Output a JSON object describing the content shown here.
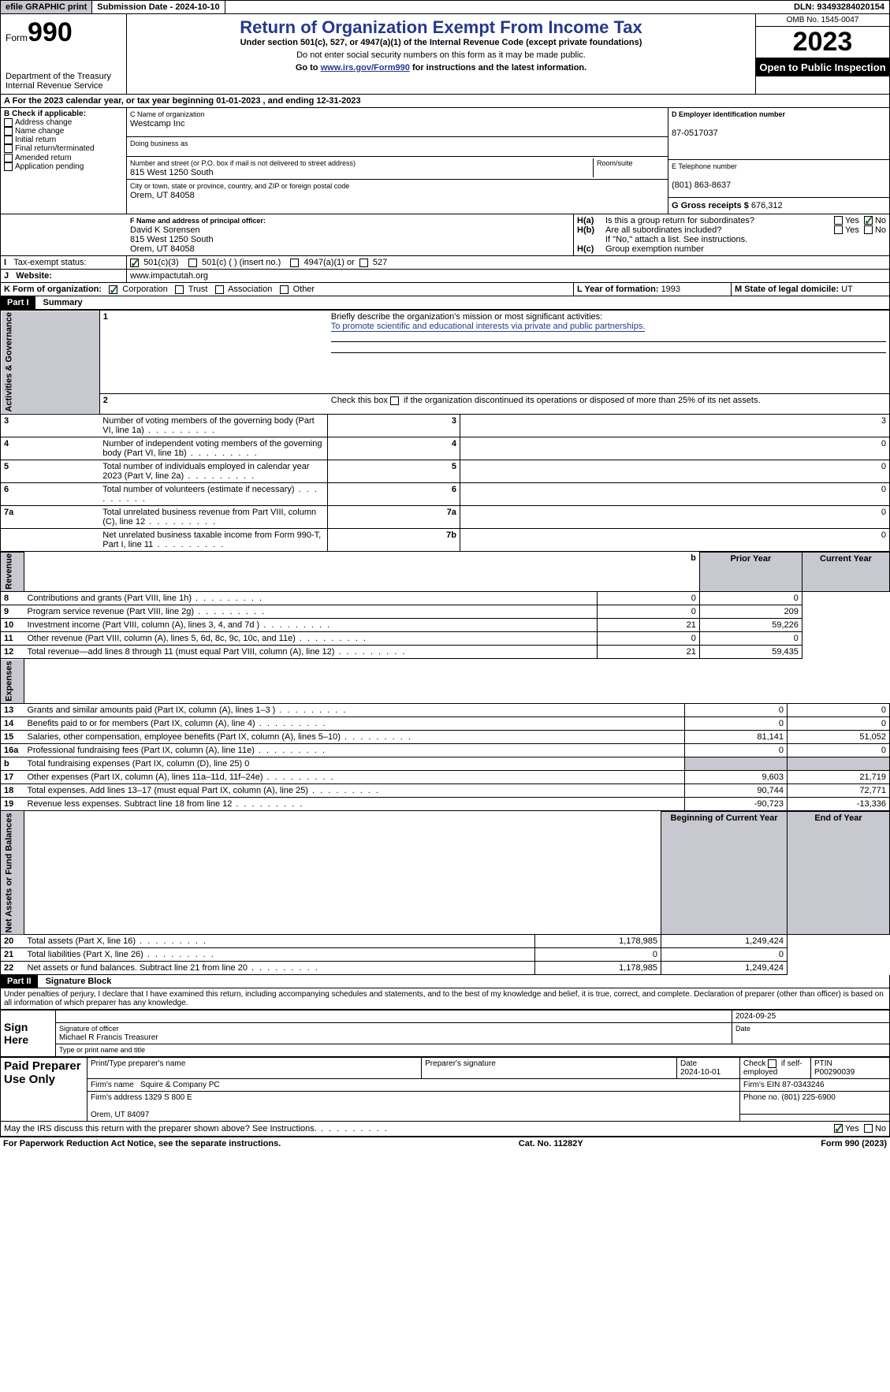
{
  "topbar": {
    "efile": "efile GRAPHIC print",
    "submission_label": "Submission Date - 2024-10-10",
    "dln_label": "DLN: 93493284020154"
  },
  "header": {
    "form_word": "Form",
    "form_num": "990",
    "dept": "Department of the Treasury",
    "irs": "Internal Revenue Service",
    "title": "Return of Organization Exempt From Income Tax",
    "sub1": "Under section 501(c), 527, or 4947(a)(1) of the Internal Revenue Code (except private foundations)",
    "sub2": "Do not enter social security numbers on this form as it may be made public.",
    "sub3_pre": "Go to ",
    "sub3_link": "www.irs.gov/Form990",
    "sub3_post": " for instructions and the latest information.",
    "omb": "OMB No. 1545-0047",
    "year": "2023",
    "open": "Open to Public Inspection"
  },
  "lineA": {
    "pre": "For the 2023 calendar year, or tax year beginning ",
    "begin": "01-01-2023",
    "mid": " , and ending ",
    "end": "12-31-2023"
  },
  "boxB": {
    "title": "B Check if applicable:",
    "items": [
      "Address change",
      "Name change",
      "Initial return",
      "Final return/terminated",
      "Amended return",
      "Application pending"
    ]
  },
  "boxC": {
    "name_lbl": "C Name of organization",
    "name": "Westcamp Inc",
    "dba_lbl": "Doing business as",
    "addr_lbl": "Number and street (or P.O. box if mail is not delivered to street address)",
    "room_lbl": "Room/suite",
    "addr": "815 West 1250 South",
    "city_lbl": "City or town, state or province, country, and ZIP or foreign postal code",
    "city": "Orem, UT  84058"
  },
  "boxD": {
    "lbl": "D Employer identification number",
    "val": "87-0517037"
  },
  "boxE": {
    "lbl": "E Telephone number",
    "val": "(801) 863-8637"
  },
  "boxG": {
    "lbl": "G Gross receipts $ ",
    "val": "676,312"
  },
  "boxF": {
    "lbl": "F  Name and address of principal officer:",
    "l1": "David K Sorensen",
    "l2": "815 West 1250 South",
    "l3": "Orem, UT  84058"
  },
  "boxH": {
    "a_lbl": "Is this a group return for subordinates?",
    "b_lbl": "Are all subordinates included?",
    "yes": "Yes",
    "no": "No",
    "note": "If \"No,\" attach a list. See instructions.",
    "c_lbl": "Group exemption number"
  },
  "taxexempt": {
    "i_lbl": "Tax-exempt status:",
    "o1": "501(c)(3)",
    "o2": "501(c) (  ) (insert no.)",
    "o3": "4947(a)(1) or",
    "o4": "527"
  },
  "website": {
    "j_lbl": "Website:",
    "val": "www.impactutah.org"
  },
  "orgform": {
    "k_lbl": "K Form of organization:",
    "o1": "Corporation",
    "o2": "Trust",
    "o3": "Association",
    "o4": "Other"
  },
  "boxL": {
    "lbl": "L Year of formation: ",
    "val": "1993"
  },
  "boxM": {
    "lbl": "M State of legal domicile: ",
    "val": "UT"
  },
  "part1": {
    "lbl": "Part I",
    "title": "Summary"
  },
  "summary": {
    "l1_lbl": "Briefly describe the organization's mission or most significant activities:",
    "l1_val": "To promote scientific and educational interests via private and public partnerships.",
    "l2_lbl": "Check this box      if the organization discontinued its operations or disposed of more than 25% of its net assets.",
    "side_gov": "Activities & Governance",
    "side_rev": "Revenue",
    "side_exp": "Expenses",
    "side_net": "Net Assets or Fund Balances",
    "rows_gov": [
      {
        "n": "3",
        "t": "Number of voting members of the governing body (Part VI, line 1a)",
        "k": "3",
        "v": "3"
      },
      {
        "n": "4",
        "t": "Number of independent voting members of the governing body (Part VI, line 1b)",
        "k": "4",
        "v": "0"
      },
      {
        "n": "5",
        "t": "Total number of individuals employed in calendar year 2023 (Part V, line 2a)",
        "k": "5",
        "v": "0"
      },
      {
        "n": "6",
        "t": "Total number of volunteers (estimate if necessary)",
        "k": "6",
        "v": "0"
      },
      {
        "n": "7a",
        "t": "Total unrelated business revenue from Part VIII, column (C), line 12",
        "k": "7a",
        "v": "0"
      },
      {
        "n": "",
        "t": "Net unrelated business taxable income from Form 990-T, Part I, line 11",
        "k": "7b",
        "v": "0"
      }
    ],
    "hdr_prior": "Prior Year",
    "hdr_curr": "Current Year",
    "rows_rev": [
      {
        "n": "8",
        "t": "Contributions and grants (Part VIII, line 1h)",
        "p": "0",
        "c": "0"
      },
      {
        "n": "9",
        "t": "Program service revenue (Part VIII, line 2g)",
        "p": "0",
        "c": "209"
      },
      {
        "n": "10",
        "t": "Investment income (Part VIII, column (A), lines 3, 4, and 7d )",
        "p": "21",
        "c": "59,226"
      },
      {
        "n": "11",
        "t": "Other revenue (Part VIII, column (A), lines 5, 6d, 8c, 9c, 10c, and 11e)",
        "p": "0",
        "c": "0"
      },
      {
        "n": "12",
        "t": "Total revenue—add lines 8 through 11 (must equal Part VIII, column (A), line 12)",
        "p": "21",
        "c": "59,435"
      }
    ],
    "rows_exp": [
      {
        "n": "13",
        "t": "Grants and similar amounts paid (Part IX, column (A), lines 1–3 )",
        "p": "0",
        "c": "0"
      },
      {
        "n": "14",
        "t": "Benefits paid to or for members (Part IX, column (A), line 4)",
        "p": "0",
        "c": "0"
      },
      {
        "n": "15",
        "t": "Salaries, other compensation, employee benefits (Part IX, column (A), lines 5–10)",
        "p": "81,141",
        "c": "51,052"
      },
      {
        "n": "16a",
        "t": "Professional fundraising fees (Part IX, column (A), line 11e)",
        "p": "0",
        "c": "0"
      },
      {
        "n": "b",
        "t": "Total fundraising expenses (Part IX, column (D), line 25) 0",
        "p": "",
        "c": "",
        "grey": true
      },
      {
        "n": "17",
        "t": "Other expenses (Part IX, column (A), lines 11a–11d, 11f–24e)",
        "p": "9,603",
        "c": "21,719"
      },
      {
        "n": "18",
        "t": "Total expenses. Add lines 13–17 (must equal Part IX, column (A), line 25)",
        "p": "90,744",
        "c": "72,771"
      },
      {
        "n": "19",
        "t": "Revenue less expenses. Subtract line 18 from line 12",
        "p": "-90,723",
        "c": "-13,336"
      }
    ],
    "hdr_beg": "Beginning of Current Year",
    "hdr_end": "End of Year",
    "rows_net": [
      {
        "n": "20",
        "t": "Total assets (Part X, line 16)",
        "p": "1,178,985",
        "c": "1,249,424"
      },
      {
        "n": "21",
        "t": "Total liabilities (Part X, line 26)",
        "p": "0",
        "c": "0"
      },
      {
        "n": "22",
        "t": "Net assets or fund balances. Subtract line 21 from line 20",
        "p": "1,178,985",
        "c": "1,249,424"
      }
    ]
  },
  "part2": {
    "lbl": "Part II",
    "title": "Signature Block"
  },
  "perjury": "Under penalties of perjury, I declare that I have examined this return, including accompanying schedules and statements, and to the best of my knowledge and belief, it is true, correct, and complete. Declaration of preparer (other than officer) is based on all information of which preparer has any knowledge.",
  "sign": {
    "side": "Sign Here",
    "sig_lbl": "Signature of officer",
    "date_lbl": "Date",
    "date": "2024-09-25",
    "name": "Michael R Francis  Treasurer",
    "name_lbl": "Type or print name and title"
  },
  "prep": {
    "side": "Paid Preparer Use Only",
    "c1": "Print/Type preparer's name",
    "c2": "Preparer's signature",
    "c3": "Date",
    "c3v": "2024-10-01",
    "c4a": "Check",
    "c4b": "if self-employed",
    "c5": "PTIN",
    "c5v": "P00290039",
    "firm_lbl": "Firm's name",
    "firm": "Squire & Company PC",
    "ein_lbl": "Firm's EIN ",
    "ein": "87-0343246",
    "addr_lbl": "Firm's address ",
    "addr1": "1329 S 800 E",
    "addr2": "Orem, UT  84097",
    "phone_lbl": "Phone no. ",
    "phone": "(801) 225-6900"
  },
  "discuss": {
    "q": "May the IRS discuss this return with the preparer shown above? See Instructions.",
    "yes": "Yes",
    "no": "No"
  },
  "footer": {
    "l": "For Paperwork Reduction Act Notice, see the separate instructions.",
    "m": "Cat. No. 11282Y",
    "r": "Form 990 (2023)"
  }
}
